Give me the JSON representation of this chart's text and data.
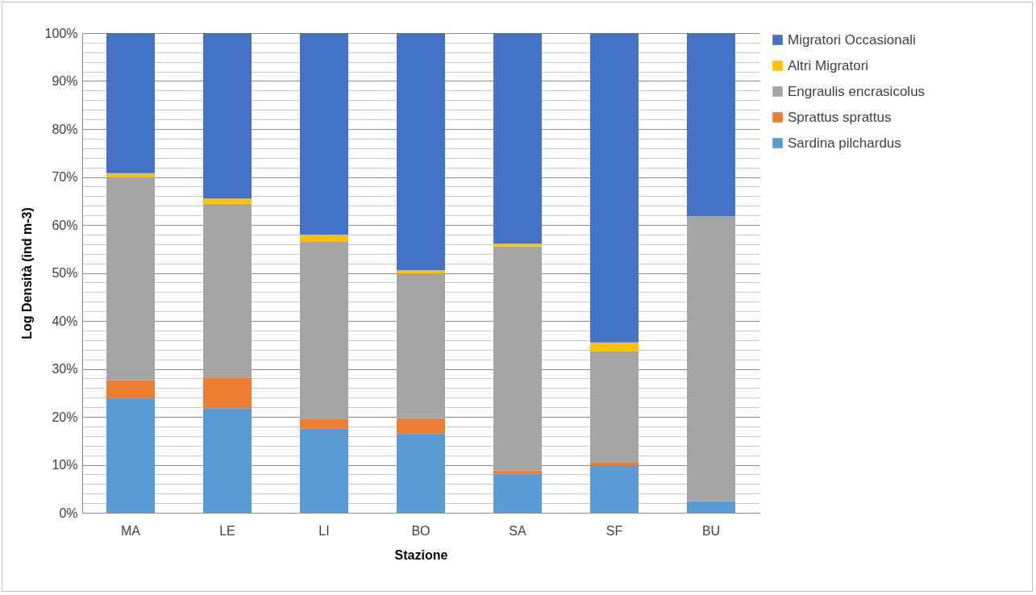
{
  "chart_data": {
    "type": "bar",
    "stacked": true,
    "xlabel": "Stazione",
    "ylabel": "Log Densità (ind m-3)",
    "categories": [
      "MA",
      "LE",
      "LI",
      "BO",
      "SA",
      "SF",
      "BU"
    ],
    "series": [
      {
        "name": "Sardina pilchardus",
        "color": "#5b9bd5",
        "values": [
          24,
          21.8,
          17.6,
          16.6,
          8.2,
          9.9,
          2.4
        ]
      },
      {
        "name": "Sprattus sprattus",
        "color": "#ed7d31",
        "values": [
          3.6,
          6.4,
          1.9,
          3.1,
          0.6,
          0.5,
          0
        ]
      },
      {
        "name": "Engraulis encrasicolus",
        "color": "#a5a5a5",
        "values": [
          42.3,
          36.2,
          37.1,
          30.2,
          46.7,
          23.2,
          59.4
        ]
      },
      {
        "name": "Altri Migratori",
        "color": "#ffc000",
        "values": [
          0.9,
          1.1,
          1.4,
          0.7,
          0.6,
          1.9,
          0
        ]
      },
      {
        "name": "Migratori Occasionali",
        "color": "#4472c4",
        "values": [
          29.2,
          34.5,
          42,
          49.4,
          43.9,
          64.5,
          38.2
        ]
      }
    ],
    "ylim": [
      0,
      100
    ],
    "yticks": [
      {
        "value": 0,
        "label": "0%"
      },
      {
        "value": 2,
        "label": null
      },
      {
        "value": 4,
        "label": null
      },
      {
        "value": 6,
        "label": null
      },
      {
        "value": 8,
        "label": null
      },
      {
        "value": 10,
        "label": "10%"
      },
      {
        "value": 12,
        "label": null
      },
      {
        "value": 14,
        "label": null
      },
      {
        "value": 16,
        "label": null
      },
      {
        "value": 18,
        "label": null
      },
      {
        "value": 20,
        "label": "20%"
      },
      {
        "value": 22,
        "label": null
      },
      {
        "value": 24,
        "label": null
      },
      {
        "value": 26,
        "label": null
      },
      {
        "value": 28,
        "label": null
      },
      {
        "value": 30,
        "label": "30%"
      },
      {
        "value": 32,
        "label": null
      },
      {
        "value": 34,
        "label": null
      },
      {
        "value": 36,
        "label": null
      },
      {
        "value": 38,
        "label": null
      },
      {
        "value": 40,
        "label": "40%"
      },
      {
        "value": 42,
        "label": null
      },
      {
        "value": 44,
        "label": null
      },
      {
        "value": 46,
        "label": null
      },
      {
        "value": 48,
        "label": null
      },
      {
        "value": 50,
        "label": "50%"
      },
      {
        "value": 52,
        "label": null
      },
      {
        "value": 54,
        "label": null
      },
      {
        "value": 56,
        "label": null
      },
      {
        "value": 58,
        "label": null
      },
      {
        "value": 60,
        "label": "60%"
      },
      {
        "value": 62,
        "label": null
      },
      {
        "value": 64,
        "label": null
      },
      {
        "value": 66,
        "label": null
      },
      {
        "value": 68,
        "label": null
      },
      {
        "value": 70,
        "label": "70%"
      },
      {
        "value": 72,
        "label": null
      },
      {
        "value": 74,
        "label": null
      },
      {
        "value": 76,
        "label": null
      },
      {
        "value": 78,
        "label": null
      },
      {
        "value": 80,
        "label": "80%"
      },
      {
        "value": 82,
        "label": null
      },
      {
        "value": 84,
        "label": null
      },
      {
        "value": 86,
        "label": null
      },
      {
        "value": 88,
        "label": null
      },
      {
        "value": 90,
        "label": "90%"
      },
      {
        "value": 92,
        "label": null
      },
      {
        "value": 94,
        "label": null
      },
      {
        "value": 96,
        "label": null
      },
      {
        "value": 98,
        "label": null
      },
      {
        "value": 100,
        "label": "100%"
      }
    ],
    "grid": "y",
    "legend": "right"
  }
}
